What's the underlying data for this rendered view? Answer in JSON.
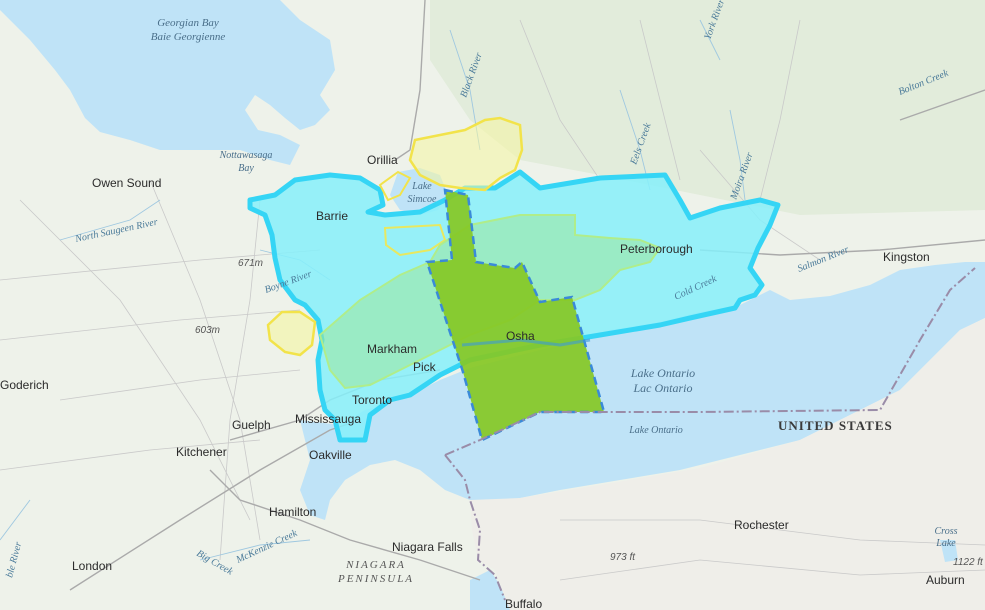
{
  "map": {
    "colors": {
      "land": "#eef2ea",
      "land_forest": "#e2ecdb",
      "water": "#bfe3f7",
      "region_fill": "#86f0fa",
      "region_outline": "#35d5f5",
      "subregion_fill": "#f5f5a0",
      "subregion_outline": "#f2e34a",
      "focus_fill": "#86c824",
      "focus_outline": "#3a8ad8",
      "border": "#9a8ca8"
    },
    "labels": {
      "georgian_bay": "Georgian Bay",
      "baie_georgienne": "Baie Georgienne",
      "nottawasaga_bay_1": "Nottawasaga",
      "nottawasaga_bay_2": "Bay",
      "owen_sound": "Owen Sound",
      "orillia": "Orillia",
      "lake_simcoe_1": "Lake",
      "lake_simcoe_2": "Simcoe",
      "barrie": "Barrie",
      "peterborough": "Peterborough",
      "kingston": "Kingston",
      "markham": "Markham",
      "pickering": "Pick",
      "oshawa": "Osha",
      "toronto": "Toronto",
      "mississauga": "Mississauga",
      "oakville": "Oakville",
      "guelph": "Guelph",
      "kitchener": "Kitchener",
      "goderich": "Goderich",
      "hamilton": "Hamilton",
      "london": "London",
      "niagara_falls": "Niagara Falls",
      "niagara_peninsula_1": "NIAGARA",
      "niagara_peninsula_2": "PENINSULA",
      "buffalo": "Buffalo",
      "rochester": "Rochester",
      "auburn": "Auburn",
      "cross_lake_1": "Cross",
      "cross_lake_2": "Lake",
      "lake_ontario_1": "Lake Ontario",
      "lac_ontario": "Lac Ontario",
      "lake_ontario_2": "Lake Ontario",
      "united_states": "UNITED STATES",
      "elev_671": "671m",
      "elev_603": "603m",
      "elev_973": "973 ft",
      "elev_1122": "1122 ft",
      "black_river": "Black River",
      "york_river": "York River",
      "bolton_creek": "Bolton Creek",
      "salmon_river": "Salmon River",
      "moira_river": "Moira River",
      "eels_creek": "Eels Creek",
      "cold_creek": "Cold Creek",
      "boyne_river": "Boyne River",
      "north_saugeen_river": "North Saugeen River",
      "big_creek": "Big Creek",
      "mckenzie_creek": "McKenzie Creek",
      "maitland_river": "ble River"
    }
  }
}
